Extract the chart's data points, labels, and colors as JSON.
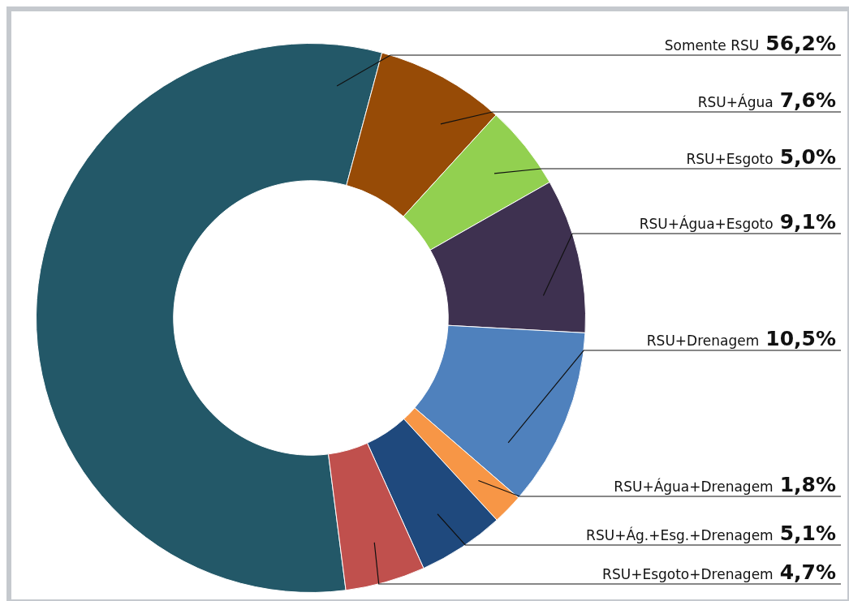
{
  "chart_data": {
    "type": "donut",
    "categories": [
      "Somente RSU",
      "RSU+Água",
      "RSU+Esgoto",
      "RSU+Água+Esgoto",
      "RSU+Drenagem",
      "RSU+Água+Drenagem",
      "RSU+Ág.+Esg.+Drenagem",
      "RSU+Esgoto+Drenagem"
    ],
    "values": [
      56.2,
      7.6,
      5.0,
      9.1,
      10.5,
      1.8,
      5.1,
      4.7
    ],
    "value_labels": [
      "56,2%",
      "7,6%",
      "5,0%",
      "9,1%",
      "10,5%",
      "1,8%",
      "5,1%",
      "4,7%"
    ],
    "colors": [
      "#235868",
      "#974b06",
      "#92d050",
      "#3e3150",
      "#4f81bd",
      "#f79646",
      "#1f497d",
      "#c0504d"
    ],
    "legend": false
  }
}
